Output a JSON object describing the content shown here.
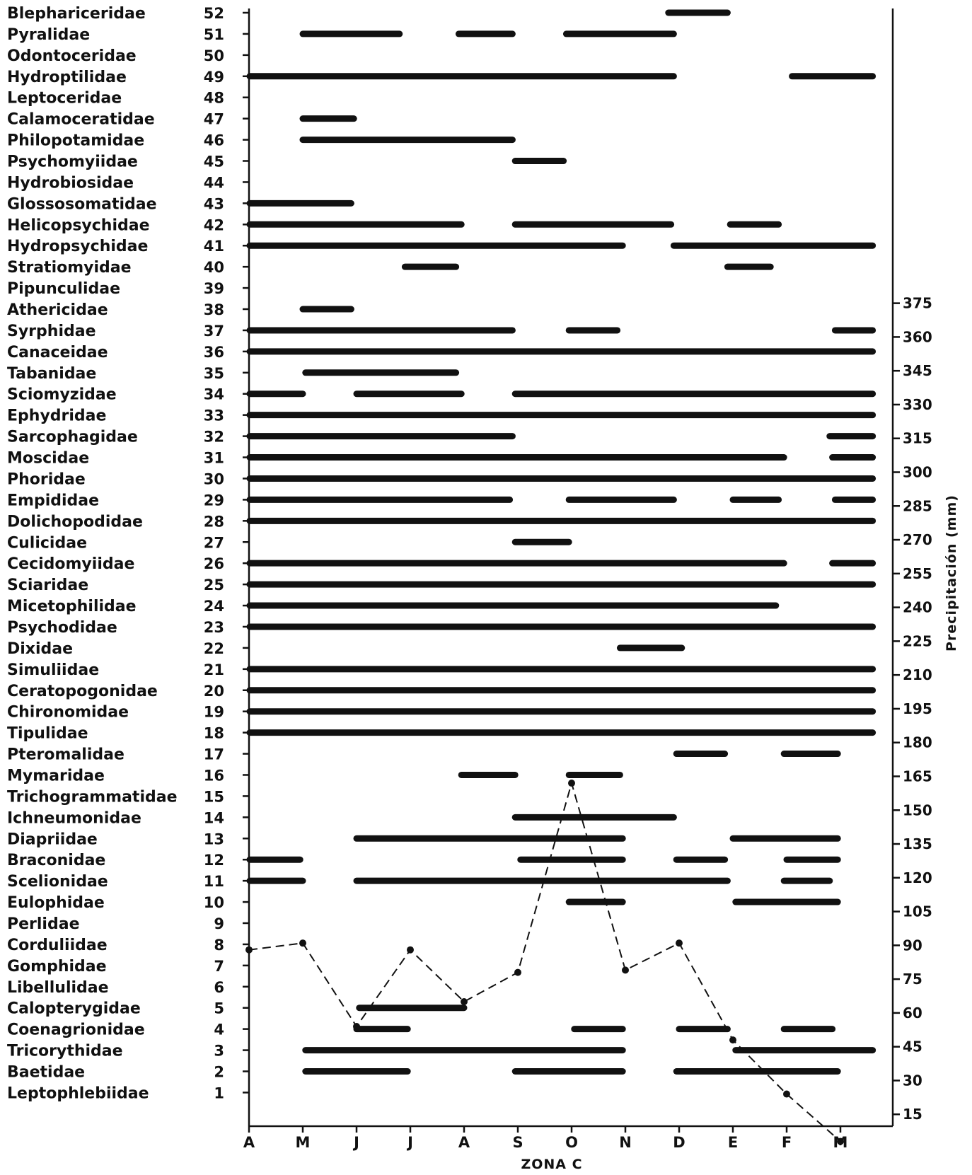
{
  "chart_data": {
    "type": "gantt_with_line",
    "xlabel": "ZONA C",
    "y2label": "Precipitación (mm)",
    "months": [
      "A",
      "M",
      "J",
      "J",
      "A",
      "S",
      "O",
      "N",
      "D",
      "E",
      "F",
      "M"
    ],
    "families": [
      {
        "id": 52,
        "name": "Blephariceridae",
        "ranges": [
          [
            7.8,
            8.9
          ]
        ]
      },
      {
        "id": 51,
        "name": "Pyralidae",
        "ranges": [
          [
            1,
            2.8
          ],
          [
            3.9,
            4.9
          ],
          [
            5.9,
            7.9
          ]
        ]
      },
      {
        "id": 50,
        "name": "Odontoceridae",
        "ranges": []
      },
      {
        "id": 49,
        "name": "Hydroptilidae",
        "ranges": [
          [
            0,
            7.9
          ],
          [
            10.1,
            11.6
          ]
        ]
      },
      {
        "id": 48,
        "name": "Leptoceridae",
        "ranges": []
      },
      {
        "id": 47,
        "name": "Calamoceratidae",
        "ranges": [
          [
            1,
            1.95
          ]
        ]
      },
      {
        "id": 46,
        "name": "Philopotamidae",
        "ranges": [
          [
            1,
            4.9
          ]
        ]
      },
      {
        "id": 45,
        "name": "Psychomyiidae",
        "ranges": [
          [
            4.95,
            5.85
          ]
        ]
      },
      {
        "id": 44,
        "name": "Hydrobiosidae",
        "ranges": []
      },
      {
        "id": 43,
        "name": "Glossosomatidae",
        "ranges": [
          [
            0,
            1.9
          ]
        ]
      },
      {
        "id": 42,
        "name": "Helicopsychidae",
        "ranges": [
          [
            0,
            3.95
          ],
          [
            4.95,
            7.85
          ],
          [
            8.95,
            9.85
          ]
        ]
      },
      {
        "id": 41,
        "name": "Hydropsychidae",
        "ranges": [
          [
            0,
            6.95
          ],
          [
            7.9,
            11.6
          ]
        ]
      },
      {
        "id": 40,
        "name": "Stratiomyidae",
        "ranges": [
          [
            2.9,
            3.85
          ],
          [
            8.9,
            9.7
          ]
        ]
      },
      {
        "id": 39,
        "name": "Pipunculidae",
        "ranges": []
      },
      {
        "id": 38,
        "name": "Athericidae",
        "ranges": [
          [
            1,
            1.9
          ]
        ]
      },
      {
        "id": 37,
        "name": "Syrphidae",
        "ranges": [
          [
            0,
            4.9
          ],
          [
            5.95,
            6.85
          ],
          [
            10.9,
            11.6
          ]
        ]
      },
      {
        "id": 36,
        "name": "Canaceidae",
        "ranges": [
          [
            0,
            11.6
          ]
        ]
      },
      {
        "id": 35,
        "name": "Tabanidae",
        "ranges": [
          [
            1.05,
            3.85
          ]
        ]
      },
      {
        "id": 34,
        "name": "Sciomyzidae",
        "ranges": [
          [
            0,
            1
          ],
          [
            2,
            3.95
          ],
          [
            4.95,
            11.6
          ]
        ]
      },
      {
        "id": 33,
        "name": "Ephydridae",
        "ranges": [
          [
            0,
            11.6
          ]
        ]
      },
      {
        "id": 32,
        "name": "Sarcophagidae",
        "ranges": [
          [
            0,
            4.9
          ],
          [
            10.8,
            11.6
          ]
        ]
      },
      {
        "id": 31,
        "name": "Moscidae",
        "ranges": [
          [
            0,
            9.95
          ],
          [
            10.85,
            11.6
          ]
        ]
      },
      {
        "id": 30,
        "name": "Phoridae",
        "ranges": [
          [
            0,
            11.6
          ]
        ]
      },
      {
        "id": 29,
        "name": "Empididae",
        "ranges": [
          [
            0,
            4.85
          ],
          [
            5.95,
            7.9
          ],
          [
            9,
            9.85
          ],
          [
            10.9,
            11.6
          ]
        ]
      },
      {
        "id": 28,
        "name": "Dolichopodidae",
        "ranges": [
          [
            0,
            11.6
          ]
        ]
      },
      {
        "id": 27,
        "name": "Culicidae",
        "ranges": [
          [
            4.95,
            5.95
          ]
        ]
      },
      {
        "id": 26,
        "name": "Cecidomyiidae",
        "ranges": [
          [
            0,
            9.95
          ],
          [
            10.85,
            11.6
          ]
        ]
      },
      {
        "id": 25,
        "name": "Sciaridae",
        "ranges": [
          [
            0,
            11.6
          ]
        ]
      },
      {
        "id": 24,
        "name": "Micetophilidae",
        "ranges": [
          [
            0,
            9.8
          ]
        ]
      },
      {
        "id": 23,
        "name": "Psychodidae",
        "ranges": [
          [
            0,
            11.6
          ]
        ]
      },
      {
        "id": 22,
        "name": "Dixidae",
        "ranges": [
          [
            6.9,
            8.05
          ]
        ]
      },
      {
        "id": 21,
        "name": "Simuliidae",
        "ranges": [
          [
            0,
            11.6
          ]
        ]
      },
      {
        "id": 20,
        "name": "Ceratopogonidae",
        "ranges": [
          [
            0,
            11.6
          ]
        ]
      },
      {
        "id": 19,
        "name": "Chironomidae",
        "ranges": [
          [
            0,
            11.6
          ]
        ]
      },
      {
        "id": 18,
        "name": "Tipulidae",
        "ranges": [
          [
            0,
            11.6
          ]
        ]
      },
      {
        "id": 17,
        "name": "Pteromalidae",
        "ranges": [
          [
            7.95,
            8.85
          ],
          [
            9.95,
            10.95
          ]
        ]
      },
      {
        "id": 16,
        "name": "Mymaridae",
        "ranges": [
          [
            3.95,
            4.95
          ],
          [
            5.95,
            6.9
          ]
        ]
      },
      {
        "id": 15,
        "name": "Trichogrammatidae",
        "ranges": []
      },
      {
        "id": 14,
        "name": "Ichneumonidae",
        "ranges": [
          [
            4.95,
            7.9
          ]
        ]
      },
      {
        "id": 13,
        "name": "Diapriidae",
        "ranges": [
          [
            2,
            6.95
          ],
          [
            9,
            10.95
          ]
        ]
      },
      {
        "id": 12,
        "name": "Braconidae",
        "ranges": [
          [
            0,
            0.95
          ],
          [
            5.05,
            6.95
          ],
          [
            7.95,
            8.85
          ],
          [
            10,
            10.95
          ]
        ]
      },
      {
        "id": 11,
        "name": "Scelionidae",
        "ranges": [
          [
            0,
            1
          ],
          [
            2,
            8.9
          ],
          [
            9.95,
            10.8
          ]
        ]
      },
      {
        "id": 10,
        "name": "Eulophidae",
        "ranges": [
          [
            5.95,
            6.95
          ],
          [
            9.05,
            10.95
          ]
        ]
      },
      {
        "id": 9,
        "name": "Perlidae",
        "ranges": []
      },
      {
        "id": 8,
        "name": "Corduliidae",
        "ranges": []
      },
      {
        "id": 7,
        "name": "Gomphidae",
        "ranges": []
      },
      {
        "id": 6,
        "name": "Libellulidae",
        "ranges": []
      },
      {
        "id": 5,
        "name": "Calopterygidae",
        "ranges": [
          [
            2.05,
            4
          ]
        ]
      },
      {
        "id": 4,
        "name": "Coenagrionidae",
        "ranges": [
          [
            2,
            2.95
          ],
          [
            6.05,
            6.95
          ],
          [
            8,
            8.9
          ],
          [
            9.95,
            10.85
          ]
        ]
      },
      {
        "id": 3,
        "name": "Tricorythidae",
        "ranges": [
          [
            1.05,
            6.95
          ],
          [
            9.05,
            11.6
          ]
        ]
      },
      {
        "id": 2,
        "name": "Baetidae",
        "ranges": [
          [
            1.05,
            2.95
          ],
          [
            4.95,
            6.95
          ],
          [
            7.95,
            10.95
          ]
        ]
      },
      {
        "id": 1,
        "name": "Leptophlebiidae",
        "ranges": []
      }
    ],
    "precip_ticks": [
      15,
      30,
      45,
      60,
      75,
      90,
      105,
      120,
      135,
      150,
      165,
      180,
      195,
      210,
      225,
      240,
      255,
      270,
      285,
      300,
      315,
      330,
      345,
      360,
      375
    ],
    "precipitation": [
      {
        "month": "A",
        "value": 88
      },
      {
        "month": "M",
        "value": 91
      },
      {
        "month": "J",
        "value": 54
      },
      {
        "month": "J",
        "value": 88
      },
      {
        "month": "A",
        "value": 65
      },
      {
        "month": "S",
        "value": 78
      },
      {
        "month": "O",
        "value": 162
      },
      {
        "month": "N",
        "value": 79
      },
      {
        "month": "D",
        "value": 91
      },
      {
        "month": "E",
        "value": 48
      },
      {
        "month": "F",
        "value": 24
      },
      {
        "month": "M",
        "value": 3
      }
    ]
  }
}
